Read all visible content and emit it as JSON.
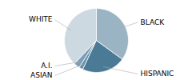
{
  "chart_data": {
    "type": "pie",
    "categories": [
      "WHITE",
      "A.I.",
      "ASIAN",
      "HISPANIC",
      "BLACK"
    ],
    "values": [
      38,
      3,
      2,
      22,
      35
    ],
    "colors": [
      "#cdd9e1",
      "#7a9db8",
      "#6b8fa8",
      "#4a7a96",
      "#9ab4c4"
    ]
  }
}
